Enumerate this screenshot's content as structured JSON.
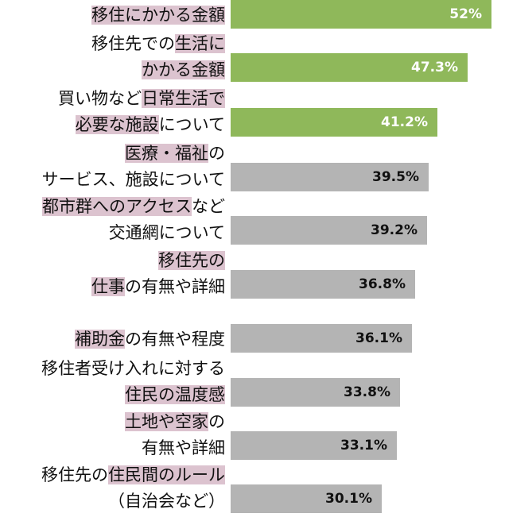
{
  "chart_data": {
    "type": "bar",
    "orientation": "horizontal",
    "categories": [
      "移住にかかる金額",
      "移住先での生活にかかる金額",
      "買い物など日常生活で必要な施設について",
      "医療・福祉のサービス、施設について",
      "都市群へのアクセスなど交通網について",
      "移住先の仕事の有無や詳細",
      "補助金の有無や程度",
      "移住者受け入れに対する住民の温度感",
      "土地や空家の有無や詳細",
      "移住先の住民間のルール（自治会など）"
    ],
    "labels": [
      [
        [
          {
            "t": "移住にかかる金額",
            "h": true
          }
        ]
      ],
      [
        [
          {
            "t": "移住先での",
            "h": false
          },
          {
            "t": "生活に",
            "h": true
          }
        ],
        [
          {
            "t": "かかる金額",
            "h": true
          }
        ]
      ],
      [
        [
          {
            "t": "買い物など",
            "h": false
          },
          {
            "t": "日常生活で",
            "h": true
          }
        ],
        [
          {
            "t": "必要な施設",
            "h": true
          },
          {
            "t": "について",
            "h": false
          }
        ]
      ],
      [
        [
          {
            "t": "医療・福祉",
            "h": true
          },
          {
            "t": "の",
            "h": false
          }
        ],
        [
          {
            "t": "サービス、施設について",
            "h": false
          }
        ]
      ],
      [
        [
          {
            "t": "都市群へのアクセス",
            "h": true
          },
          {
            "t": "など",
            "h": false
          }
        ],
        [
          {
            "t": "交通網について",
            "h": false
          }
        ]
      ],
      [
        [
          {
            "t": "移住先の",
            "h": true
          }
        ],
        [
          {
            "t": "仕事",
            "h": true
          },
          {
            "t": "の有無や詳細",
            "h": false
          }
        ]
      ],
      [
        [
          {
            "t": "補助金",
            "h": true
          },
          {
            "t": "の有無や程度",
            "h": false
          }
        ]
      ],
      [
        [
          {
            "t": "移住者受け入れに対する",
            "h": false
          }
        ],
        [
          {
            "t": "住民の温度感",
            "h": true
          }
        ]
      ],
      [
        [
          {
            "t": "土地や空家",
            "h": true
          },
          {
            "t": "の",
            "h": false
          }
        ],
        [
          {
            "t": "有無や詳細",
            "h": false
          }
        ]
      ],
      [
        [
          {
            "t": "移住先の",
            "h": false
          },
          {
            "t": "住民間のルール",
            "h": true
          }
        ],
        [
          {
            "t": "（自治会など）",
            "h": false
          }
        ]
      ]
    ],
    "values": [
      52,
      47.3,
      41.2,
      39.5,
      39.2,
      36.8,
      36.1,
      33.8,
      33.1,
      30.1
    ],
    "value_labels": [
      "52%",
      "47.3%",
      "41.2%",
      "39.5%",
      "39.2%",
      "36.8%",
      "36.1%",
      "33.8%",
      "33.1%",
      "30.1%"
    ],
    "xlim": [
      0,
      52
    ],
    "highlight_top_n": 3,
    "colors": {
      "highlight_bar": "#8fb85a",
      "other_bar": "#b4b4b4",
      "highlight_text": "#ffffff",
      "other_text": "#111111",
      "label_highlight": "#dcc3cf"
    }
  }
}
